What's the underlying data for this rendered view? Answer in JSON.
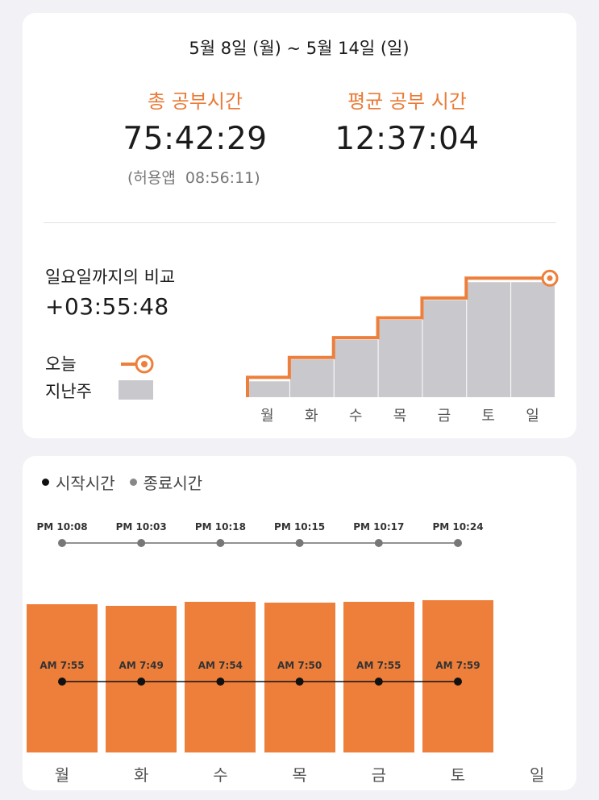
{
  "colors": {
    "accent": "#ee7f3b",
    "last_week_fill": "#c9c9cd",
    "background": "#f2f2f6"
  },
  "summary": {
    "date_range": "5월 8일 (월) ~ 5월 14일 (일)",
    "total_label": "총 공부시간",
    "total_value": "75:42:29",
    "total_sub": "(허용앱  08:56:11)",
    "avg_label": "평균 공부 시간",
    "avg_value": "12:37:04"
  },
  "comparison": {
    "label": "일요일까지의 비교",
    "value": "+03:55:48",
    "legend_today": "오늘",
    "legend_last_week": "지난주"
  },
  "days": [
    "월",
    "화",
    "수",
    "목",
    "금",
    "토",
    "일"
  ],
  "times_legend": {
    "start": "시작시간",
    "end": "종료시간"
  },
  "times": {
    "start_labels": [
      "AM 7:55",
      "AM 7:49",
      "AM 7:54",
      "AM 7:50",
      "AM 7:55",
      "AM 7:59"
    ],
    "end_labels": [
      "PM 10:08",
      "PM 10:03",
      "PM 10:18",
      "PM 10:15",
      "PM 10:17",
      "PM 10:24"
    ]
  },
  "chart_data": [
    {
      "type": "area",
      "categories": [
        "월",
        "화",
        "수",
        "목",
        "금",
        "토",
        "일"
      ],
      "series": [
        {
          "name": "오늘",
          "values": [
            10,
            20,
            30,
            40,
            50,
            60,
            60
          ]
        },
        {
          "name": "지난주",
          "values": [
            8,
            19,
            29,
            39,
            49,
            58,
            58
          ]
        }
      ],
      "legend": "left",
      "ylim": [
        0,
        65
      ]
    },
    {
      "type": "bar",
      "categories": [
        "월",
        "화",
        "수",
        "목",
        "금",
        "토",
        "일"
      ],
      "series": [
        {
          "name": "시작시간",
          "values": [
            "AM 7:55",
            "AM 7:49",
            "AM 7:54",
            "AM 7:50",
            "AM 7:55",
            "AM 7:59",
            null
          ]
        },
        {
          "name": "종료시간",
          "values": [
            "PM 10:08",
            "PM 10:03",
            "PM 10:18",
            "PM 10:15",
            "PM 10:17",
            "PM 10:24",
            null
          ]
        }
      ],
      "legend": "top-left"
    }
  ]
}
